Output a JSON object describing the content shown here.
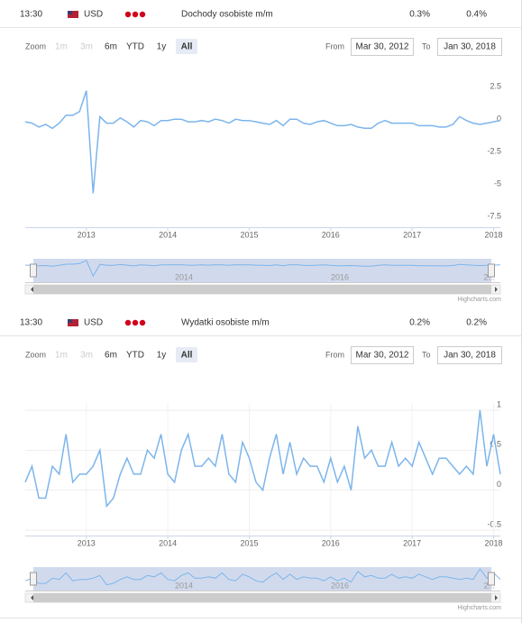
{
  "events": [
    {
      "time": "13:30",
      "currency": "USD",
      "name": "Dochody osobiste m/m",
      "actual": "0.3%",
      "forecast": "0.4%",
      "range_selector": {
        "zoom_label": "Zoom",
        "buttons": [
          "1m",
          "3m",
          "6m",
          "YTD",
          "1y",
          "All"
        ],
        "from_label": "From",
        "from": "Mar 30, 2012",
        "to_label": "To",
        "to": "Jan 30, 2018"
      }
    },
    {
      "time": "13:30",
      "currency": "USD",
      "name": "Wydatki osobiste m/m",
      "actual": "0.2%",
      "forecast": "0.2%",
      "range_selector": {
        "zoom_label": "Zoom",
        "buttons": [
          "1m",
          "3m",
          "6m",
          "YTD",
          "1y",
          "All"
        ],
        "from_label": "From",
        "from": "Mar 30, 2012",
        "to_label": "To",
        "to": "Jan 30, 2018"
      }
    }
  ],
  "chart_data": [
    {
      "type": "line",
      "color": "#7cb5ec",
      "grid": false,
      "x": [
        2012.25,
        2012.333,
        2012.417,
        2012.5,
        2012.583,
        2012.667,
        2012.75,
        2012.833,
        2012.917,
        2013,
        2013.083,
        2013.167,
        2013.25,
        2013.333,
        2013.417,
        2013.5,
        2013.583,
        2013.667,
        2013.75,
        2013.833,
        2013.917,
        2014,
        2014.083,
        2014.167,
        2014.25,
        2014.333,
        2014.417,
        2014.5,
        2014.583,
        2014.667,
        2014.75,
        2014.833,
        2014.917,
        2015,
        2015.083,
        2015.167,
        2015.25,
        2015.333,
        2015.417,
        2015.5,
        2015.583,
        2015.667,
        2015.75,
        2015.833,
        2015.917,
        2016,
        2016.083,
        2016.167,
        2016.25,
        2016.333,
        2016.417,
        2016.5,
        2016.583,
        2016.667,
        2016.75,
        2016.833,
        2016.917,
        2017,
        2017.083,
        2017.167,
        2017.25,
        2017.333,
        2017.417,
        2017.5,
        2017.583,
        2017.667,
        2017.75,
        2017.833,
        2017.917,
        2018,
        2018.083
      ],
      "values": [
        0.2,
        0.1,
        -0.2,
        0.0,
        -0.3,
        0.1,
        0.7,
        0.7,
        1.0,
        2.6,
        -5.3,
        0.6,
        0.1,
        0.1,
        0.5,
        0.2,
        -0.2,
        0.3,
        0.2,
        -0.1,
        0.3,
        0.3,
        0.4,
        0.4,
        0.2,
        0.2,
        0.3,
        0.2,
        0.4,
        0.3,
        0.1,
        0.4,
        0.3,
        0.3,
        0.2,
        0.1,
        0.0,
        0.3,
        -0.1,
        0.4,
        0.4,
        0.1,
        0.0,
        0.2,
        0.3,
        0.1,
        -0.1,
        -0.1,
        0.0,
        -0.2,
        -0.3,
        -0.3,
        0.1,
        0.3,
        0.1,
        0.1,
        0.1,
        0.1,
        -0.1,
        -0.1,
        -0.1,
        -0.2,
        -0.2,
        0.0,
        0.6,
        0.3,
        0.1,
        0.0,
        0.1,
        0.2,
        0.3
      ],
      "xlim": [
        2012.25,
        2018.083
      ],
      "xticks": [
        2013,
        2014,
        2015,
        2016,
        2017,
        2018
      ],
      "ylim": [
        -7.5,
        2.5
      ],
      "yticks": [
        2.5,
        0,
        -2.5,
        -5,
        -7.5
      ],
      "navigator_labels": [
        "2014",
        "2016",
        "2..."
      ],
      "credits": "Highcharts.com"
    },
    {
      "type": "line",
      "color": "#7cb5ec",
      "grid": true,
      "x": [
        2012.25,
        2012.333,
        2012.417,
        2012.5,
        2012.583,
        2012.667,
        2012.75,
        2012.833,
        2012.917,
        2013,
        2013.083,
        2013.167,
        2013.25,
        2013.333,
        2013.417,
        2013.5,
        2013.583,
        2013.667,
        2013.75,
        2013.833,
        2013.917,
        2014,
        2014.083,
        2014.167,
        2014.25,
        2014.333,
        2014.417,
        2014.5,
        2014.583,
        2014.667,
        2014.75,
        2014.833,
        2014.917,
        2015,
        2015.083,
        2015.167,
        2015.25,
        2015.333,
        2015.417,
        2015.5,
        2015.583,
        2015.667,
        2015.75,
        2015.833,
        2015.917,
        2016,
        2016.083,
        2016.167,
        2016.25,
        2016.333,
        2016.417,
        2016.5,
        2016.583,
        2016.667,
        2016.75,
        2016.833,
        2016.917,
        2017,
        2017.083,
        2017.167,
        2017.25,
        2017.333,
        2017.417,
        2017.5,
        2017.583,
        2017.667,
        2017.75,
        2017.833,
        2017.917,
        2018,
        2018.083
      ],
      "values": [
        0.1,
        0.3,
        -0.1,
        -0.1,
        0.3,
        0.2,
        0.7,
        0.1,
        0.2,
        0.2,
        0.3,
        0.5,
        -0.2,
        -0.1,
        0.2,
        0.4,
        0.2,
        0.2,
        0.5,
        0.4,
        0.7,
        0.2,
        0.1,
        0.5,
        0.7,
        0.3,
        0.3,
        0.4,
        0.3,
        0.7,
        0.2,
        0.1,
        0.6,
        0.4,
        0.1,
        0.0,
        0.4,
        0.7,
        0.2,
        0.6,
        0.2,
        0.4,
        0.3,
        0.3,
        0.1,
        0.4,
        0.1,
        0.3,
        0.0,
        0.8,
        0.4,
        0.5,
        0.3,
        0.3,
        0.6,
        0.3,
        0.4,
        0.3,
        0.6,
        0.4,
        0.2,
        0.4,
        0.4,
        0.3,
        0.2,
        0.3,
        0.2,
        1.0,
        0.3,
        0.7,
        0.2
      ],
      "xlim": [
        2012.25,
        2018.083
      ],
      "xticks": [
        2013,
        2014,
        2015,
        2016,
        2017,
        2018
      ],
      "ylim": [
        -0.5,
        1
      ],
      "yticks": [
        1,
        0.5,
        0,
        -0.5
      ],
      "navigator_labels": [
        "2014",
        "2016",
        "2..."
      ],
      "credits": "Highcharts.com"
    }
  ]
}
